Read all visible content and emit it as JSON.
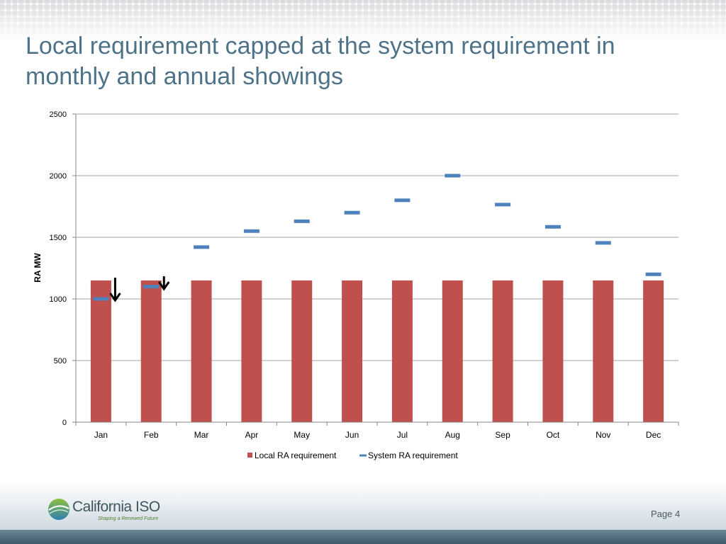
{
  "slide": {
    "title": "Local requirement capped at the system requirement in monthly and annual showings",
    "page_label": "Page 4"
  },
  "logo": {
    "name": "California ISO",
    "tagline": "Shaping a Renewed Future"
  },
  "colors": {
    "title": "#4e7389",
    "local_bar": "#c0504d",
    "system_marker": "#4f81bd",
    "gridline": "#a6a6a6"
  },
  "chart_data": {
    "type": "bar",
    "title": "",
    "xlabel": "",
    "ylabel": "RA MW",
    "ylim": [
      0,
      2500
    ],
    "yticks": [
      0,
      500,
      1000,
      1500,
      2000,
      2500
    ],
    "grid": true,
    "legend_position": "bottom",
    "categories": [
      "Jan",
      "Feb",
      "Mar",
      "Apr",
      "May",
      "Jun",
      "Jul",
      "Aug",
      "Sep",
      "Oct",
      "Nov",
      "Dec"
    ],
    "series": [
      {
        "name": "Local RA requirement",
        "mark": "bar",
        "color": "#c0504d",
        "values": [
          1150,
          1150,
          1150,
          1150,
          1150,
          1150,
          1150,
          1150,
          1150,
          1150,
          1150,
          1150
        ]
      },
      {
        "name": "System RA requirement",
        "mark": "dash",
        "color": "#4f81bd",
        "values": [
          1000,
          1100,
          1420,
          1550,
          1630,
          1700,
          1800,
          2000,
          1765,
          1585,
          1455,
          1200
        ]
      }
    ],
    "annotations": [
      {
        "type": "down-arrow",
        "category": "Jan"
      },
      {
        "type": "down-arrow",
        "category": "Feb"
      }
    ]
  }
}
